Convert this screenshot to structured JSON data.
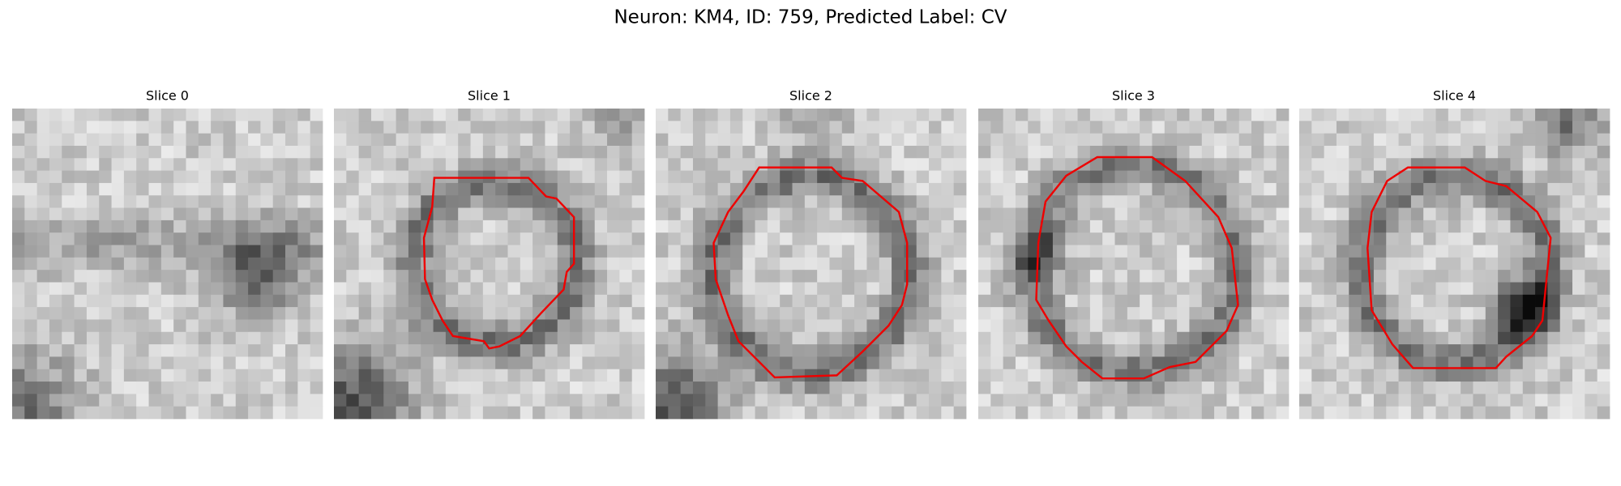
{
  "title": "Neuron: KM4, ID: 759, Predicted Label: CV",
  "panels": [
    {
      "title": "Slice 0"
    },
    {
      "title": "Slice 1"
    },
    {
      "title": "Slice 2"
    },
    {
      "title": "Slice 3"
    },
    {
      "title": "Slice 4"
    }
  ]
}
